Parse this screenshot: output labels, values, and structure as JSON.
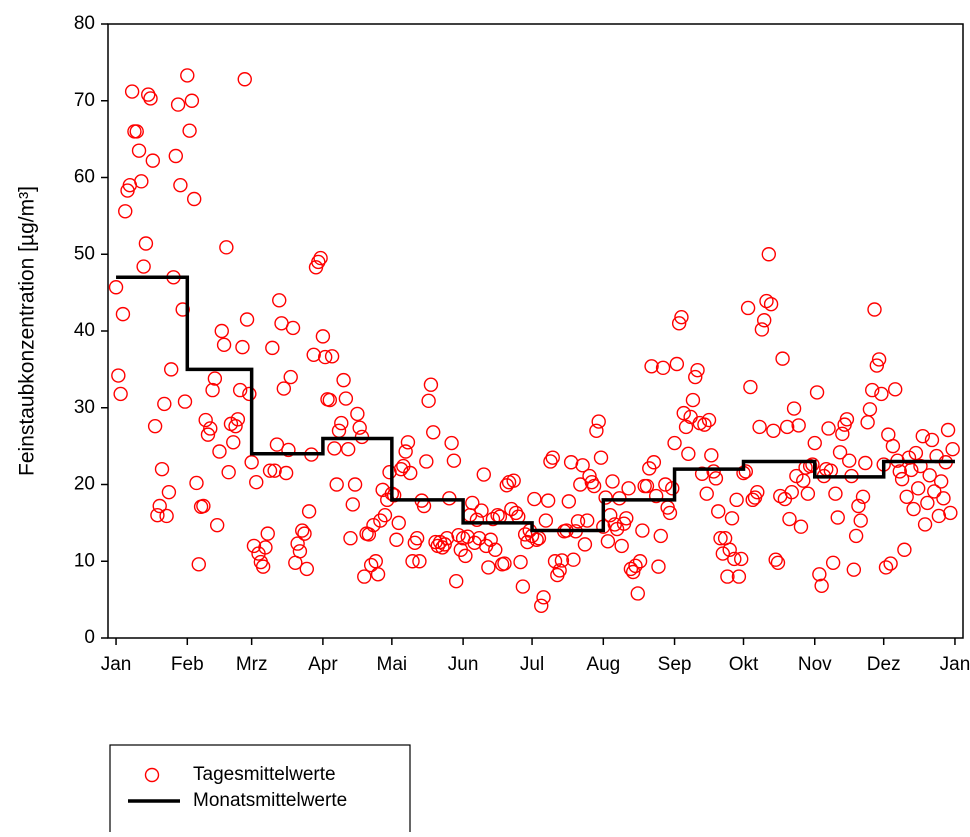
{
  "chart_data": {
    "type": "scatter",
    "ylabel": "Feinstaubkonzentration [µg/m³]",
    "xlim": [
      -3.5,
      368.5
    ],
    "ylim": [
      0,
      80
    ],
    "yticks": [
      0,
      10,
      20,
      30,
      40,
      50,
      60,
      70,
      80
    ],
    "xticks": [
      {
        "value": 0,
        "label": "Jan"
      },
      {
        "value": 31,
        "label": "Feb"
      },
      {
        "value": 59,
        "label": "Mrz"
      },
      {
        "value": 90,
        "label": "Apr"
      },
      {
        "value": 120,
        "label": "Mai"
      },
      {
        "value": 151,
        "label": "Jun"
      },
      {
        "value": 181,
        "label": "Jul"
      },
      {
        "value": 212,
        "label": "Aug"
      },
      {
        "value": 243,
        "label": "Sep"
      },
      {
        "value": 273,
        "label": "Okt"
      },
      {
        "value": 304,
        "label": "Nov"
      },
      {
        "value": 334,
        "label": "Dez"
      },
      {
        "value": 365,
        "label": "Jan"
      }
    ],
    "series": [
      {
        "name": "Tagesmittelwerte",
        "color": "#ff0000",
        "marker": "circle",
        "x": [
          0,
          1,
          2,
          3,
          4,
          5,
          6,
          7,
          8,
          9,
          10,
          11,
          12,
          13,
          14,
          15,
          16,
          17,
          18,
          19,
          20,
          21,
          22,
          23,
          24,
          25,
          26,
          27,
          28,
          29,
          30,
          31,
          32,
          33,
          34,
          35,
          36,
          37,
          38,
          39,
          40,
          41,
          42,
          43,
          44,
          45,
          46,
          47,
          48,
          49,
          50,
          51,
          52,
          53,
          54,
          55,
          56,
          57,
          58,
          59,
          60,
          61,
          62,
          63,
          64,
          65,
          66,
          67,
          68,
          69,
          70,
          71,
          72,
          73,
          74,
          75,
          76,
          77,
          78,
          79,
          80,
          81,
          82,
          83,
          84,
          85,
          86,
          87,
          88,
          89,
          90,
          91,
          92,
          93,
          94,
          95,
          96,
          97,
          98,
          99,
          100,
          101,
          102,
          103,
          104,
          105,
          106,
          107,
          108,
          109,
          110,
          111,
          112,
          113,
          114,
          115,
          116,
          117,
          118,
          119,
          120,
          121,
          122,
          123,
          124,
          125,
          126,
          127,
          128,
          129,
          130,
          131,
          132,
          133,
          134,
          135,
          136,
          137,
          138,
          139,
          140,
          141,
          142,
          143,
          144,
          145,
          146,
          147,
          148,
          149,
          150,
          151,
          152,
          153,
          154,
          155,
          156,
          157,
          158,
          159,
          160,
          161,
          162,
          163,
          164,
          165,
          166,
          167,
          168,
          169,
          170,
          171,
          172,
          173,
          174,
          175,
          176,
          177,
          178,
          179,
          180,
          181,
          182,
          183,
          184,
          185,
          186,
          187,
          188,
          189,
          190,
          191,
          192,
          193,
          194,
          195,
          196,
          197,
          198,
          199,
          200,
          201,
          202,
          203,
          204,
          205,
          206,
          207,
          208,
          209,
          210,
          211,
          212,
          213,
          214,
          215,
          216,
          217,
          218,
          219,
          220,
          221,
          222,
          223,
          224,
          225,
          226,
          227,
          228,
          229,
          230,
          231,
          232,
          233,
          234,
          235,
          236,
          237,
          238,
          239,
          240,
          241,
          242,
          243,
          244,
          245,
          246,
          247,
          248,
          249,
          250,
          251,
          252,
          253,
          254,
          255,
          256,
          257,
          258,
          259,
          260,
          261,
          262,
          263,
          264,
          265,
          266,
          267,
          268,
          269,
          270,
          271,
          272,
          273,
          274,
          275,
          276,
          277,
          278,
          279,
          280,
          281,
          282,
          283,
          284,
          285,
          286,
          287,
          288,
          289,
          290,
          291,
          292,
          293,
          294,
          295,
          296,
          297,
          298,
          299,
          300,
          301,
          302,
          303,
          304,
          305,
          306,
          307,
          308,
          309,
          310,
          311,
          312,
          313,
          314,
          315,
          316,
          317,
          318,
          319,
          320,
          321,
          322,
          323,
          324,
          325,
          326,
          327,
          328,
          329,
          330,
          331,
          332,
          333,
          334,
          335,
          336,
          337,
          338,
          339,
          340,
          341,
          342,
          343,
          344,
          345,
          346,
          347,
          348,
          349,
          350,
          351,
          352,
          353,
          354,
          355,
          356,
          357,
          358,
          359,
          360,
          361,
          362,
          363,
          364
        ],
        "values": [
          45.7,
          34.2,
          31.8,
          42.2,
          55.6,
          58.3,
          59,
          71.2,
          66,
          66,
          63.5,
          59.5,
          48.4,
          51.4,
          70.8,
          70.3,
          62.2,
          27.6,
          16,
          17.2,
          22,
          30.5,
          15.9,
          19,
          35,
          47,
          62.8,
          69.5,
          59,
          42.8,
          30.8,
          73.3,
          66.1,
          70,
          57.2,
          20.2,
          9.6,
          17.1,
          17.2,
          28.4,
          26.5,
          27.3,
          32.3,
          33.8,
          14.7,
          24.3,
          40,
          38.2,
          50.9,
          21.6,
          27.9,
          25.5,
          27.6,
          28.5,
          32.3,
          37.9,
          72.8,
          41.5,
          31.8,
          22.9,
          12,
          20.3,
          11,
          9.9,
          9.3,
          11.8,
          13.6,
          21.8,
          37.8,
          21.8,
          25.2,
          44,
          41,
          32.5,
          21.5,
          24.5,
          34,
          40.4,
          9.8,
          12.3,
          11.3,
          14,
          13.6,
          9,
          16.5,
          23.9,
          36.9,
          48.3,
          49,
          49.5,
          39.3,
          36.6,
          31.1,
          31,
          36.7,
          24.7,
          20,
          27,
          28,
          33.6,
          31.2,
          24.6,
          13,
          17.4,
          20,
          29.2,
          27.4,
          26.2,
          8,
          13.6,
          13.5,
          9.5,
          14.7,
          10,
          8.3,
          15.3,
          19.3,
          16,
          18,
          21.6,
          18.8,
          18.6,
          12.8,
          15,
          22,
          22.4,
          24.3,
          25.5,
          21.5,
          10,
          12.4,
          13,
          10,
          17.9,
          17.2,
          23,
          30.9,
          33,
          26.8,
          12.5,
          12,
          12.5,
          11.8,
          12.2,
          13,
          18.2,
          25.4,
          23.1,
          7.4,
          13.4,
          11.5,
          13,
          10.7,
          13.2,
          16,
          17.6,
          12.4,
          15.4,
          13,
          16.6,
          21.3,
          12,
          9.2,
          12.8,
          15.5,
          11.5,
          16,
          15.8,
          9.6,
          9.7,
          19.9,
          20.3,
          16.8,
          20.5,
          16.3,
          15.8,
          9.9,
          6.7,
          13.5,
          12.5,
          14,
          13.3,
          18.1,
          12.8,
          13,
          4.2,
          5.3,
          15.3,
          17.9,
          23,
          23.5,
          10,
          8.2,
          8.8,
          10.1,
          13.9,
          14,
          17.8,
          22.9,
          10.2,
          13.9,
          15.2,
          20,
          22.5,
          12.2,
          15.3,
          21.1,
          20.3,
          19.8,
          27,
          28.2,
          23.5,
          14.5,
          18.3,
          12.6,
          16,
          20.4,
          14.8,
          14.2,
          18.2,
          12,
          14.9,
          15.6,
          19.5,
          9,
          8.6,
          9.4,
          5.8,
          10,
          14,
          19.8,
          19.8,
          22.1,
          35.4,
          22.9,
          18.5,
          9.3,
          13.3,
          35.2,
          20,
          17,
          16.3,
          19.5,
          25.4,
          35.7,
          41,
          41.8,
          29.3,
          27.5,
          24,
          28.8,
          31,
          34,
          34.9,
          28,
          21.4,
          27.8,
          18.8,
          28.4,
          23.8,
          21.7,
          20.8,
          16.5,
          13,
          11,
          13,
          8,
          11.5,
          15.6,
          10.3,
          18,
          8,
          10.3,
          21.5,
          21.7,
          43,
          32.7,
          18,
          18.3,
          19,
          27.5,
          40.2,
          41.4,
          43.9,
          50,
          43.5,
          27,
          10.2,
          9.8,
          18.5,
          36.4,
          18.1,
          27.5,
          15.5,
          19,
          29.9,
          21.1,
          27.7,
          14.5,
          20.5,
          22.2,
          18.8,
          22.4,
          22.6,
          25.4,
          32,
          8.3,
          6.8,
          21.1,
          22,
          27.3,
          21.8,
          9.8,
          18.8,
          15.7,
          24.2,
          26.6,
          27.8,
          28.5,
          23.1,
          21.1,
          8.9,
          13.3,
          17.2,
          15.3,
          18.4,
          22.8,
          28.1,
          29.8,
          32.3,
          42.8,
          35.5,
          36.3,
          31.8,
          22.6,
          9.2,
          26.5,
          9.7,
          25,
          32.4,
          23.1,
          21.7,
          20.7,
          11.5,
          18.4,
          23.5,
          21.9,
          16.8,
          24.1,
          19.5,
          22.4,
          26.3,
          14.8,
          17.6,
          21.2,
          25.8,
          19.1,
          23.7,
          15.9,
          20.4,
          18.2,
          22.9,
          27.1,
          16.3,
          24.6
        ]
      },
      {
        "name": "Monatsmittelwerte",
        "color": "#000000",
        "marker": "step",
        "x": [
          0,
          31,
          59,
          90,
          120,
          151,
          181,
          212,
          243,
          273,
          304,
          334
        ],
        "values": [
          47,
          35,
          24,
          26,
          18,
          15,
          14,
          18,
          22,
          23,
          21,
          23
        ]
      }
    ]
  }
}
